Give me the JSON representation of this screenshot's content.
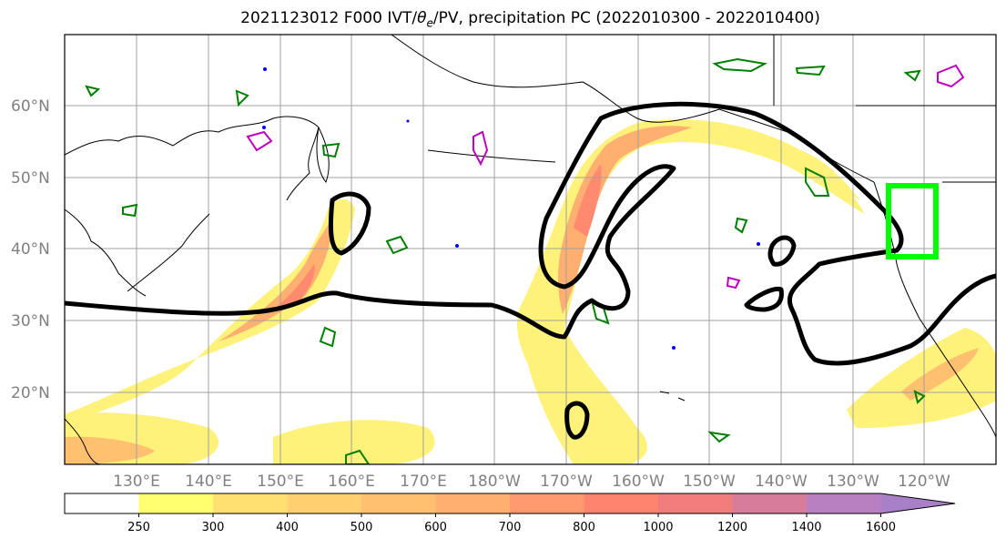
{
  "title_prefix": "2021123012 F000 IVT/",
  "title_theta": "θ",
  "title_sub": "e",
  "title_suffix": "/PV, precipitation PC (2022010300 - 2022010400)",
  "lat_labels": [
    "60°N",
    "50°N",
    "40°N",
    "30°N",
    "20°N"
  ],
  "lon_labels": [
    "130°E",
    "140°E",
    "150°E",
    "160°E",
    "170°E",
    "180°W",
    "170°W",
    "160°W",
    "150°W",
    "140°W",
    "130°W",
    "120°W"
  ],
  "colorbar": {
    "ticks": [
      "250",
      "300",
      "400",
      "500",
      "600",
      "700",
      "800",
      "1000",
      "1200",
      "1400",
      "1600"
    ],
    "colors": [
      "#ffffff",
      "#ffff70",
      "#ffe070",
      "#ffd070",
      "#ffc070",
      "#ffb070",
      "#ff9a70",
      "#ff8470",
      "#f07c7c",
      "#d87c9c",
      "#b880c0",
      "#a880c8"
    ]
  },
  "colors": {
    "ivt_contour": "#000000",
    "theta_contour": "#008000",
    "pv_contour": "#c000c0",
    "blue_marks": "#0000ff",
    "highlight_box": "#00ff00",
    "coastline": "#000000",
    "grid": "#a0a0a0"
  }
}
